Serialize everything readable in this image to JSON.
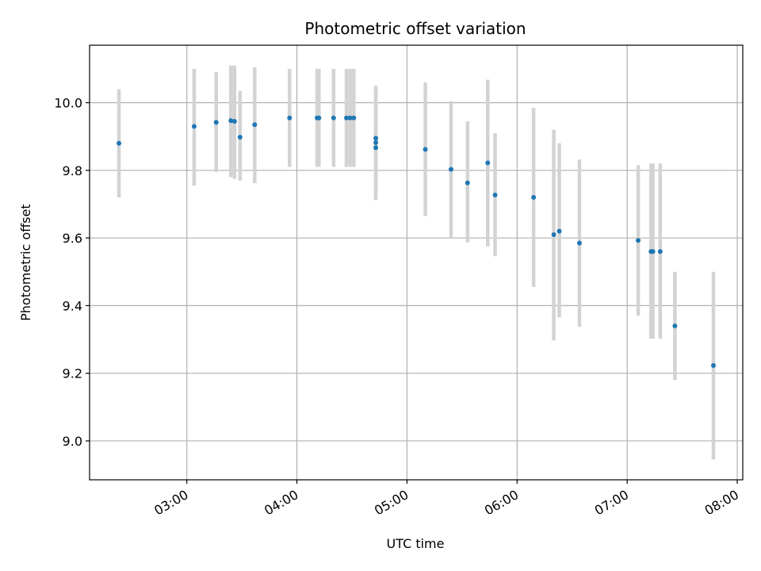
{
  "chart_data": {
    "type": "scatter",
    "title": "Photometric offset variation",
    "xlabel": "UTC time",
    "ylabel": "Photometric offset",
    "x_ticks": [
      "03:00",
      "04:00",
      "05:00",
      "06:00",
      "07:00",
      "08:00"
    ],
    "y_ticks": [
      "9.0",
      "9.2",
      "9.4",
      "9.6",
      "9.8",
      "10.0"
    ],
    "xlim": [
      "02:07",
      "08:03"
    ],
    "ylim": [
      8.885,
      10.17
    ],
    "grid": true,
    "colors": {
      "marker": "#1f77b4",
      "errorbar": "#d3d3d3",
      "grid": "#b0b0b0"
    },
    "points": [
      {
        "t": "02:23",
        "y": 9.88,
        "ylo": 9.72,
        "yhi": 10.04
      },
      {
        "t": "03:04",
        "y": 9.93,
        "ylo": 9.755,
        "yhi": 10.1
      },
      {
        "t": "03:16",
        "y": 9.942,
        "ylo": 9.795,
        "yhi": 10.09
      },
      {
        "t": "03:24",
        "y": 9.947,
        "ylo": 9.78,
        "yhi": 10.11
      },
      {
        "t": "03:26",
        "y": 9.945,
        "ylo": 9.775,
        "yhi": 10.11
      },
      {
        "t": "03:29",
        "y": 9.898,
        "ylo": 9.77,
        "yhi": 10.035
      },
      {
        "t": "03:37",
        "y": 9.935,
        "ylo": 9.762,
        "yhi": 10.105
      },
      {
        "t": "03:56",
        "y": 9.955,
        "ylo": 9.81,
        "yhi": 10.1
      },
      {
        "t": "04:11",
        "y": 9.955,
        "ylo": 9.81,
        "yhi": 10.1
      },
      {
        "t": "04:12",
        "y": 9.955,
        "ylo": 9.81,
        "yhi": 10.1
      },
      {
        "t": "04:20",
        "y": 9.955,
        "ylo": 9.81,
        "yhi": 10.1
      },
      {
        "t": "04:27",
        "y": 9.955,
        "ylo": 9.81,
        "yhi": 10.1
      },
      {
        "t": "04:29",
        "y": 9.955,
        "ylo": 9.81,
        "yhi": 10.1
      },
      {
        "t": "04:31",
        "y": 9.955,
        "ylo": 9.81,
        "yhi": 10.1
      },
      {
        "t": "04:43",
        "y": 9.895,
        "ylo": 9.74,
        "yhi": 10.05
      },
      {
        "t": "04:43",
        "y": 9.882,
        "ylo": 9.725,
        "yhi": 10.045
      },
      {
        "t": "04:43",
        "y": 9.867,
        "ylo": 9.712,
        "yhi": 10.02
      },
      {
        "t": "05:10",
        "y": 9.862,
        "ylo": 9.665,
        "yhi": 10.06
      },
      {
        "t": "05:24",
        "y": 9.803,
        "ylo": 9.6,
        "yhi": 10.005
      },
      {
        "t": "05:33",
        "y": 9.763,
        "ylo": 9.587,
        "yhi": 9.945
      },
      {
        "t": "05:44",
        "y": 9.822,
        "ylo": 9.575,
        "yhi": 10.068
      },
      {
        "t": "05:48",
        "y": 9.727,
        "ylo": 9.546,
        "yhi": 9.91
      },
      {
        "t": "06:09",
        "y": 9.72,
        "ylo": 9.455,
        "yhi": 9.985
      },
      {
        "t": "06:20",
        "y": 9.61,
        "ylo": 9.297,
        "yhi": 9.92
      },
      {
        "t": "06:23",
        "y": 9.62,
        "ylo": 9.365,
        "yhi": 9.88
      },
      {
        "t": "06:34",
        "y": 9.585,
        "ylo": 9.337,
        "yhi": 9.832
      },
      {
        "t": "07:06",
        "y": 9.593,
        "ylo": 9.37,
        "yhi": 9.815
      },
      {
        "t": "07:13",
        "y": 9.56,
        "ylo": 9.302,
        "yhi": 9.82
      },
      {
        "t": "07:14",
        "y": 9.56,
        "ylo": 9.302,
        "yhi": 9.82
      },
      {
        "t": "07:18",
        "y": 9.56,
        "ylo": 9.302,
        "yhi": 9.82
      },
      {
        "t": "07:26",
        "y": 9.34,
        "ylo": 9.18,
        "yhi": 9.5
      },
      {
        "t": "07:47",
        "y": 9.223,
        "ylo": 8.945,
        "yhi": 9.5
      }
    ]
  }
}
